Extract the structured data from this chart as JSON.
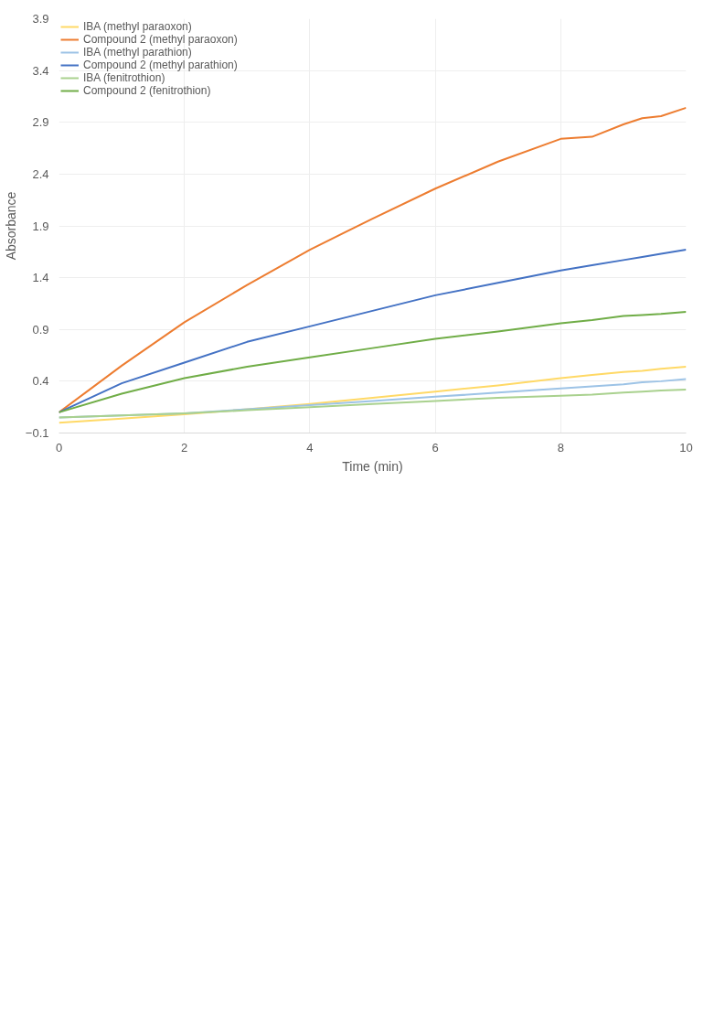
{
  "chart_data": {
    "type": "line",
    "xlabel": "Time (min)",
    "ylabel": "Absorbance",
    "xlim": [
      0,
      10
    ],
    "ylim": [
      -0.1,
      3.9
    ],
    "xticks": [
      0,
      2,
      4,
      6,
      8,
      10
    ],
    "yticks": [
      -0.1,
      0.4,
      0.9,
      1.4,
      1.9,
      2.4,
      2.9,
      3.4,
      3.9
    ],
    "grid": true,
    "legend": "top left",
    "marker": "none",
    "line_style": "solid",
    "x": [
      0,
      1,
      2,
      3,
      4,
      5,
      6,
      7,
      8,
      8.5,
      9,
      9.3,
      9.6,
      10
    ],
    "series": [
      {
        "name": "IBA (methyl paraoxon)",
        "color": "#ffd966",
        "values": [
          0.0,
          0.04,
          0.08,
          0.13,
          0.18,
          0.24,
          0.3,
          0.36,
          0.43,
          0.46,
          0.49,
          0.5,
          0.52,
          0.54
        ]
      },
      {
        "name": "Compound 2 (methyl paraoxon)",
        "color": "#ed7d31",
        "values": [
          0.1,
          0.55,
          0.97,
          1.33,
          1.67,
          1.97,
          2.26,
          2.52,
          2.74,
          2.76,
          2.88,
          2.94,
          2.96,
          3.04
        ]
      },
      {
        "name": "IBA (methyl parathion)",
        "color": "#9dc3e6",
        "values": [
          0.05,
          0.07,
          0.09,
          0.13,
          0.17,
          0.21,
          0.25,
          0.29,
          0.33,
          0.35,
          0.37,
          0.39,
          0.4,
          0.42
        ]
      },
      {
        "name": "Compound 2 (methyl parathion)",
        "color": "#4472c4",
        "values": [
          0.1,
          0.38,
          0.58,
          0.78,
          0.93,
          1.08,
          1.23,
          1.35,
          1.47,
          1.52,
          1.57,
          1.6,
          1.63,
          1.67
        ]
      },
      {
        "name": "IBA (fenitrothion)",
        "color": "#a9d18e",
        "values": [
          0.05,
          0.07,
          0.09,
          0.12,
          0.15,
          0.18,
          0.21,
          0.24,
          0.26,
          0.27,
          0.29,
          0.3,
          0.31,
          0.32
        ]
      },
      {
        "name": "Compound 2 (fenitrothion)",
        "color": "#70ad47",
        "values": [
          0.1,
          0.28,
          0.43,
          0.54,
          0.63,
          0.72,
          0.81,
          0.88,
          0.96,
          0.99,
          1.03,
          1.04,
          1.05,
          1.07
        ]
      }
    ]
  }
}
